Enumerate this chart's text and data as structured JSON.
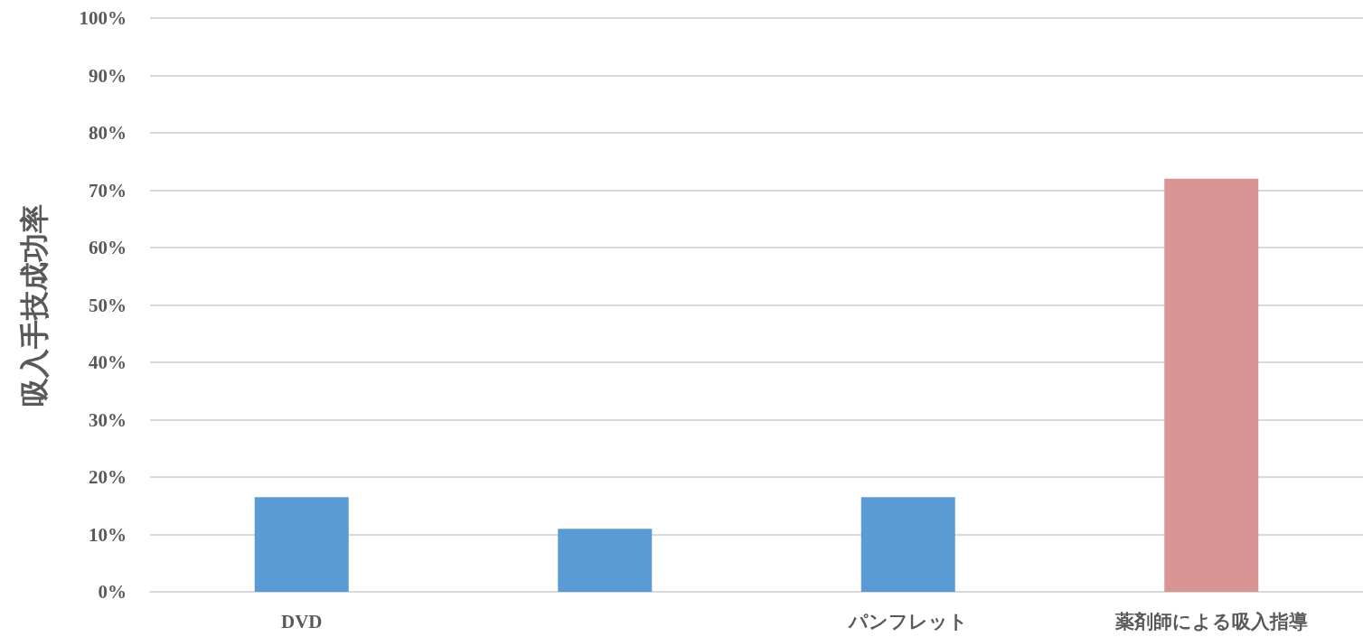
{
  "chart_data": {
    "type": "bar",
    "ylabel": "吸入手技成功率",
    "categories": [
      "DVD",
      null,
      "パンフレット",
      "薬剤師による吸入指導"
    ],
    "values": [
      16.5,
      11,
      16.5,
      72
    ],
    "colors": [
      "#5b9bd5",
      "#5b9bd5",
      "#5b9bd5",
      "#d99594"
    ],
    "ylim": [
      0,
      100
    ],
    "yticks": [
      {
        "value": 0,
        "label": "0%"
      },
      {
        "value": 10,
        "label": "10%"
      },
      {
        "value": 20,
        "label": "20%"
      },
      {
        "value": 30,
        "label": "30%"
      },
      {
        "value": 40,
        "label": "40%"
      },
      {
        "value": 50,
        "label": "50%"
      },
      {
        "value": 60,
        "label": "60%"
      },
      {
        "value": 70,
        "label": "70%"
      },
      {
        "value": 80,
        "label": "80%"
      },
      {
        "value": 90,
        "label": "90%"
      },
      {
        "value": 100,
        "label": "100%"
      }
    ],
    "grid": "y"
  }
}
